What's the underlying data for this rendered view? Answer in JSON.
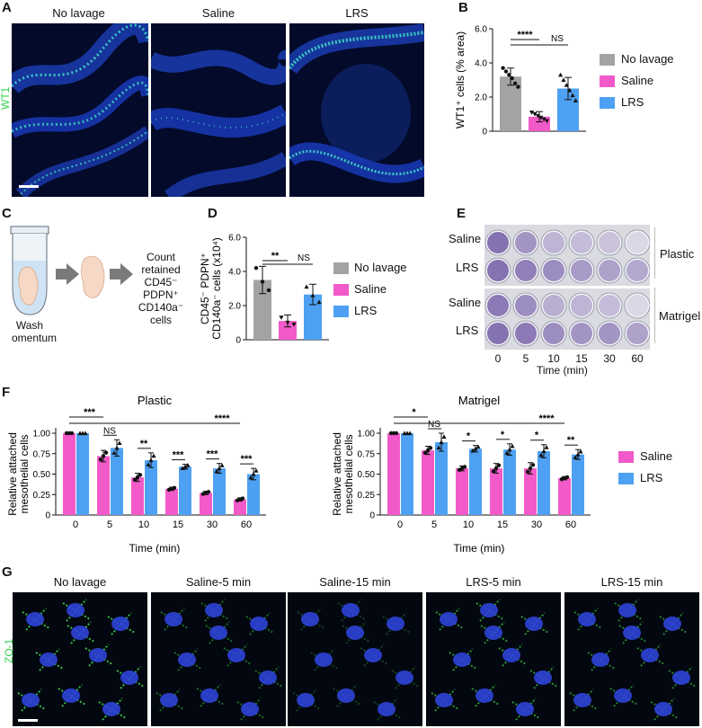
{
  "panel_letters": [
    "A",
    "B",
    "C",
    "D",
    "E",
    "F",
    "G"
  ],
  "panel_a": {
    "titles": [
      "No lavage",
      "Saline",
      "LRS"
    ],
    "stain_label": "WT1"
  },
  "panel_c": {
    "wash_label": [
      "Wash",
      "omentum"
    ],
    "count_label": [
      "Count",
      "retained",
      "CD45⁻",
      "PDPN⁺",
      "CD140a⁻",
      "cells"
    ]
  },
  "panel_e": {
    "row_labels": [
      "Saline",
      "LRS",
      "Saline",
      "LRS"
    ],
    "group_labels": [
      "Plastic",
      "Matrigel"
    ],
    "time_ticks": [
      "0",
      "5",
      "10",
      "15",
      "30",
      "60"
    ],
    "xlabel": "Time (min)"
  },
  "panel_g": {
    "titles": [
      "No lavage",
      "Saline-5 min",
      "Saline-15 min",
      "LRS-5 min",
      "LRS-15 min"
    ],
    "stain_label": "ZO-1"
  },
  "colors": {
    "no_lavage": "#a3a3a3",
    "saline": "#f25ac9",
    "lrs": "#4ea1f2",
    "wt1": "#2fd14a"
  },
  "legend_three": [
    "No lavage",
    "Saline",
    "LRS"
  ],
  "legend_two": [
    "Saline",
    "LRS"
  ],
  "chart_data": [
    {
      "id": "B",
      "type": "bar",
      "categories": [
        "No lavage",
        "Saline",
        "LRS"
      ],
      "values": [
        3.2,
        0.85,
        2.5
      ],
      "errors": [
        0.5,
        0.3,
        0.65
      ],
      "points": [
        [
          3.7,
          3.5,
          3.3,
          3.1,
          2.8,
          2.6
        ],
        [
          1.1,
          1.0,
          0.9,
          0.8,
          0.7,
          0.6
        ],
        [
          3.3,
          3.0,
          2.7,
          2.4,
          2.1,
          1.8
        ]
      ],
      "xlabel": "",
      "ylabel": "WT1⁺ cells (% area)",
      "ylim": [
        0,
        6
      ],
      "yticks": [
        0,
        2.0,
        4.0,
        6.0
      ],
      "ytick_labels": [
        "0",
        "2.0",
        "4.0",
        "6.0"
      ],
      "significance": [
        "****",
        "NS"
      ]
    },
    {
      "id": "D",
      "type": "bar",
      "categories": [
        "No lavage",
        "Saline",
        "LRS"
      ],
      "values": [
        3.5,
        1.1,
        2.65
      ],
      "errors": [
        0.8,
        0.35,
        0.6
      ],
      "points": [
        [
          4.2,
          3.4,
          2.9
        ],
        [
          1.3,
          1.0,
          0.9
        ],
        [
          3.1,
          2.6,
          2.2
        ]
      ],
      "xlabel": "",
      "ylabel_lines": [
        "CD45⁻ PDPN⁺",
        "CD140a⁻ cells (x10⁴)"
      ],
      "ylim": [
        0,
        6
      ],
      "yticks": [
        0,
        2.0,
        4.0,
        6.0
      ],
      "ytick_labels": [
        "0",
        "2.0",
        "4.0",
        "6.0"
      ],
      "significance": [
        "**",
        "NS"
      ]
    },
    {
      "id": "F-Plastic",
      "type": "bar",
      "title": "Plastic",
      "categories": [
        "0",
        "5",
        "10",
        "15",
        "30",
        "60"
      ],
      "series": [
        {
          "name": "Saline",
          "values": [
            1.0,
            0.72,
            0.46,
            0.32,
            0.27,
            0.19
          ],
          "errors": [
            0.0,
            0.07,
            0.05,
            0.02,
            0.02,
            0.02
          ]
        },
        {
          "name": "LRS",
          "values": [
            1.0,
            0.82,
            0.67,
            0.59,
            0.57,
            0.5
          ],
          "errors": [
            0.0,
            0.1,
            0.09,
            0.03,
            0.06,
            0.07
          ]
        }
      ],
      "xlabel": "Time (min)",
      "ylabel_lines": [
        "Relative attached",
        "mesothelial cells"
      ],
      "ylim": [
        0,
        1.0
      ],
      "yticks": [
        0,
        0.25,
        0.5,
        0.75,
        1.0
      ],
      "ytick_labels": [
        "0",
        "0.25",
        "0.50",
        "0.75",
        "1.00"
      ],
      "pair_significance": [
        "",
        "NS",
        "**",
        "***",
        "***",
        "***"
      ],
      "top_significance": [
        "***",
        "****"
      ]
    },
    {
      "id": "F-Matrigel",
      "type": "bar",
      "title": "Matrigel",
      "categories": [
        "0",
        "5",
        "10",
        "15",
        "30",
        "60"
      ],
      "series": [
        {
          "name": "Saline",
          "values": [
            1.0,
            0.79,
            0.57,
            0.57,
            0.57,
            0.45
          ],
          "errors": [
            0.0,
            0.05,
            0.03,
            0.06,
            0.07,
            0.02
          ]
        },
        {
          "name": "LRS",
          "values": [
            1.0,
            0.89,
            0.81,
            0.8,
            0.78,
            0.74
          ],
          "errors": [
            0.0,
            0.11,
            0.04,
            0.07,
            0.08,
            0.06
          ]
        }
      ],
      "xlabel": "Time (min)",
      "ylabel_lines": [
        "Relative attached",
        "mesothelial cells"
      ],
      "ylim": [
        0,
        1.0
      ],
      "yticks": [
        0,
        0.25,
        0.5,
        0.75,
        1.0
      ],
      "ytick_labels": [
        "0",
        "0.25",
        "0.50",
        "0.75",
        "1.00"
      ],
      "pair_significance": [
        "",
        "NS",
        "*",
        "*",
        "*",
        "**"
      ],
      "top_significance": [
        "*",
        "****"
      ]
    }
  ]
}
